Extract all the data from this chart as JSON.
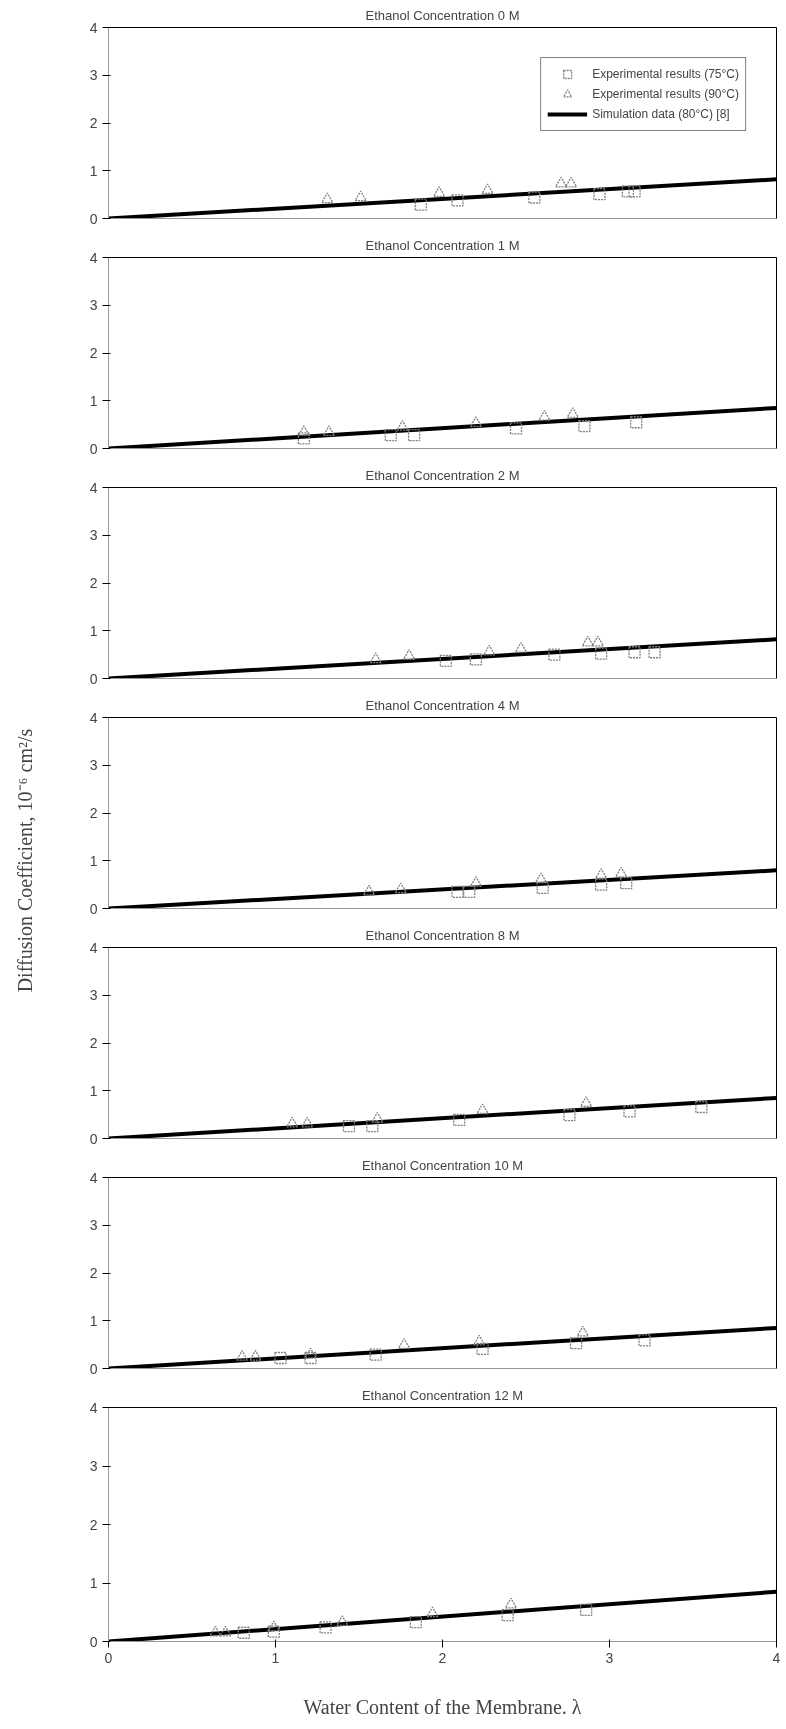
{
  "chart_data": [
    {
      "type": "scatter",
      "title": "Ethanol Concentration 0 M",
      "xlim": [
        0,
        4
      ],
      "ylim": [
        0,
        4
      ],
      "xticks": [
        0,
        1,
        2,
        3,
        4
      ],
      "yticks": [
        0,
        1,
        2,
        3,
        4
      ],
      "tick_labels": "y",
      "grid": false,
      "legend": "top right",
      "series": [
        {
          "name": "Experimental results (75°C)",
          "marker": "square",
          "color": "#808080",
          "x": [
            1.87,
            2.09,
            2.55,
            2.94,
            3.11,
            3.15
          ],
          "values": [
            0.29,
            0.38,
            0.44,
            0.51,
            0.57,
            0.57
          ]
        },
        {
          "name": "Experimental results (90°C)",
          "marker": "triangle",
          "color": "#808080",
          "x": [
            1.31,
            1.51,
            1.98,
            2.27,
            2.71,
            2.77
          ],
          "values": [
            0.4,
            0.44,
            0.53,
            0.59,
            0.73,
            0.73
          ]
        },
        {
          "name": "Simulation data (80°C) [8]",
          "type": "line",
          "marker": "none",
          "color": "#000000",
          "x": [
            0,
            4
          ],
          "values": [
            0,
            0.82
          ]
        }
      ]
    },
    {
      "type": "scatter",
      "title": "Ethanol Concentration 1 M",
      "xlim": [
        0,
        4
      ],
      "ylim": [
        0,
        4
      ],
      "xticks": [
        0,
        1,
        2,
        3,
        4
      ],
      "yticks": [
        0,
        1,
        2,
        3,
        4
      ],
      "tick_labels": "y",
      "grid": false,
      "series": [
        {
          "type": "scatter",
          "marker": "square",
          "color": "#808080",
          "x": [
            1.17,
            1.69,
            1.83,
            2.44,
            2.85,
            3.16
          ],
          "values": [
            0.21,
            0.28,
            0.28,
            0.42,
            0.47,
            0.55
          ]
        },
        {
          "type": "scatter",
          "marker": "triangle",
          "color": "#808080",
          "x": [
            1.17,
            1.32,
            1.76,
            2.2,
            2.61,
            2.78
          ],
          "values": [
            0.34,
            0.34,
            0.45,
            0.53,
            0.66,
            0.72
          ]
        },
        {
          "type": "line",
          "marker": "none",
          "color": "#000000",
          "x": [
            0,
            4
          ],
          "values": [
            0,
            0.85
          ]
        }
      ]
    },
    {
      "type": "scatter",
      "title": "Ethanol Concentration 2 M",
      "xlim": [
        0,
        4
      ],
      "ylim": [
        0,
        4
      ],
      "xticks": [
        0,
        1,
        2,
        3,
        4
      ],
      "yticks": [
        0,
        1,
        2,
        3,
        4
      ],
      "tick_labels": "y",
      "grid": false,
      "series": [
        {
          "type": "scatter",
          "marker": "square",
          "color": "#808080",
          "x": [
            2.02,
            2.2,
            2.67,
            2.95,
            3.15,
            3.27
          ],
          "values": [
            0.37,
            0.4,
            0.5,
            0.52,
            0.55,
            0.55
          ]
        },
        {
          "type": "scatter",
          "marker": "triangle",
          "color": "#808080",
          "x": [
            1.6,
            1.8,
            2.28,
            2.47,
            2.87,
            2.93
          ],
          "values": [
            0.4,
            0.47,
            0.56,
            0.62,
            0.75,
            0.75
          ]
        },
        {
          "type": "line",
          "marker": "none",
          "color": "#000000",
          "x": [
            0,
            4
          ],
          "values": [
            0,
            0.82
          ]
        }
      ]
    },
    {
      "type": "scatter",
      "title": "Ethanol Concentration 4 M",
      "ylabel": "Diffusion Coefficient, 10⁻⁶ cm²/s",
      "xlim": [
        0,
        4
      ],
      "ylim": [
        0,
        4
      ],
      "xticks": [
        0,
        1,
        2,
        3,
        4
      ],
      "yticks": [
        0,
        1,
        2,
        3,
        4
      ],
      "tick_labels": "y",
      "grid": false,
      "series": [
        {
          "type": "scatter",
          "marker": "square",
          "color": "#808080",
          "x": [
            2.09,
            2.16,
            2.6,
            2.95,
            3.1
          ],
          "values": [
            0.35,
            0.35,
            0.43,
            0.5,
            0.53
          ]
        },
        {
          "type": "scatter",
          "marker": "triangle",
          "color": "#808080",
          "x": [
            1.56,
            1.75,
            2.2,
            2.59,
            2.95,
            3.07
          ],
          "values": [
            0.35,
            0.4,
            0.53,
            0.61,
            0.7,
            0.73
          ]
        },
        {
          "type": "line",
          "marker": "none",
          "color": "#000000",
          "x": [
            0,
            4
          ],
          "values": [
            0,
            0.8
          ]
        }
      ]
    },
    {
      "type": "scatter",
      "title": "Ethanol Concentration 8 M",
      "xlim": [
        0,
        4
      ],
      "ylim": [
        0,
        4
      ],
      "xticks": [
        0,
        1,
        2,
        3,
        4
      ],
      "yticks": [
        0,
        1,
        2,
        3,
        4
      ],
      "tick_labels": "y",
      "grid": false,
      "series": [
        {
          "type": "scatter",
          "marker": "square",
          "color": "#808080",
          "x": [
            1.44,
            1.58,
            2.1,
            2.76,
            3.12,
            3.55
          ],
          "values": [
            0.26,
            0.26,
            0.39,
            0.49,
            0.57,
            0.66
          ]
        },
        {
          "type": "scatter",
          "marker": "triangle",
          "color": "#808080",
          "x": [
            1.1,
            1.19,
            1.61,
            2.24,
            2.86
          ],
          "values": [
            0.31,
            0.31,
            0.41,
            0.59,
            0.74
          ]
        },
        {
          "type": "line",
          "marker": "none",
          "color": "#000000",
          "x": [
            0,
            4
          ],
          "values": [
            0,
            0.85
          ]
        }
      ]
    },
    {
      "type": "scatter",
      "title": "Ethanol Concentration 10 M",
      "xlim": [
        0,
        4
      ],
      "ylim": [
        0,
        4
      ],
      "xticks": [
        0,
        1,
        2,
        3,
        4
      ],
      "yticks": [
        0,
        1,
        2,
        3,
        4
      ],
      "tick_labels": "y",
      "grid": false,
      "series": [
        {
          "type": "scatter",
          "marker": "square",
          "color": "#808080",
          "x": [
            1.03,
            1.21,
            1.6,
            2.24,
            2.8,
            3.21
          ],
          "values": [
            0.22,
            0.22,
            0.29,
            0.41,
            0.53,
            0.59
          ]
        },
        {
          "type": "scatter",
          "marker": "triangle",
          "color": "#808080",
          "x": [
            0.8,
            0.88,
            1.21,
            1.77,
            2.22,
            2.84
          ],
          "values": [
            0.24,
            0.24,
            0.29,
            0.49,
            0.56,
            0.75
          ]
        },
        {
          "type": "line",
          "marker": "none",
          "color": "#000000",
          "x": [
            0,
            4
          ],
          "values": [
            0,
            0.85
          ]
        }
      ]
    },
    {
      "type": "scatter",
      "title": "Ethanol Concentration 12 M",
      "xlabel": "Water Content of the Membrane. λ",
      "xlim": [
        0,
        4
      ],
      "ylim": [
        0,
        4
      ],
      "xticks": [
        0,
        1,
        2,
        3,
        4
      ],
      "yticks": [
        0,
        1,
        2,
        3,
        4
      ],
      "grid": false,
      "series": [
        {
          "type": "scatter",
          "marker": "square",
          "color": "#808080",
          "x": [
            0.81,
            0.99,
            1.3,
            1.84,
            2.39,
            2.86
          ],
          "values": [
            0.15,
            0.17,
            0.24,
            0.33,
            0.45,
            0.54
          ]
        },
        {
          "type": "scatter",
          "marker": "triangle",
          "color": "#808080",
          "x": [
            0.64,
            0.7,
            0.99,
            1.4,
            1.94,
            2.41
          ],
          "values": [
            0.15,
            0.15,
            0.24,
            0.33,
            0.48,
            0.63
          ]
        },
        {
          "type": "line",
          "marker": "none",
          "color": "#000000",
          "x": [
            0,
            4
          ],
          "values": [
            0,
            0.85
          ]
        }
      ]
    }
  ]
}
